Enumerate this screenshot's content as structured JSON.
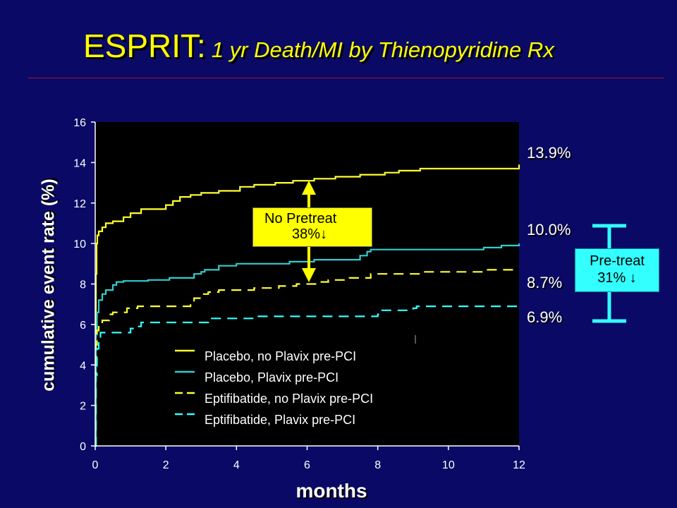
{
  "title": {
    "main": "ESPRIT:",
    "sub": "1 yr Death/MI by Thienopyridine Rx"
  },
  "colors": {
    "background": "#0a0a66",
    "title": "#ffff00",
    "placebo_no_plavix": "#ffff33",
    "placebo_plavix": "#33cccc",
    "eptifibatide_no_plavix": "#ffff33",
    "eptifibatide_plavix": "#33ffff",
    "no_pretreat_box": "#ffff00",
    "pretreat_box": "#33ffff"
  },
  "annotations": {
    "no_pretreat_line1": "No Pretreat",
    "no_pretreat_line2": "38%↓",
    "pretreat_line1": "Pre-treat",
    "pretreat_line2": "31% ↓"
  },
  "chart_data": {
    "type": "line",
    "xlabel": "months",
    "ylabel": "cumulative event rate (%)",
    "xlim": [
      0,
      12
    ],
    "ylim": [
      0,
      16
    ],
    "xticks": [
      "0",
      "2",
      "4",
      "6",
      "8",
      "10",
      "12"
    ],
    "yticks": [
      "0",
      "2",
      "4",
      "6",
      "8",
      "10",
      "12",
      "14",
      "16"
    ],
    "grid": false,
    "legend_position": "bottom-center",
    "end_labels": [
      "13.9%",
      "10.0%",
      "8.7%",
      "6.9%"
    ],
    "series": [
      {
        "name": "Placebo, no Plavix pre-PCI",
        "style": "solid",
        "color": "#ffff33",
        "points": [
          [
            0,
            0
          ],
          [
            0.02,
            8.5
          ],
          [
            0.04,
            10.0
          ],
          [
            0.06,
            10.4
          ],
          [
            0.1,
            10.6
          ],
          [
            0.2,
            10.8
          ],
          [
            0.3,
            11.0
          ],
          [
            0.5,
            11.1
          ],
          [
            0.8,
            11.3
          ],
          [
            1.0,
            11.5
          ],
          [
            1.3,
            11.7
          ],
          [
            2.0,
            11.9
          ],
          [
            2.2,
            12.1
          ],
          [
            2.4,
            12.3
          ],
          [
            2.7,
            12.4
          ],
          [
            3.0,
            12.5
          ],
          [
            3.5,
            12.6
          ],
          [
            4.1,
            12.8
          ],
          [
            4.5,
            12.9
          ],
          [
            5.1,
            13.0
          ],
          [
            5.6,
            13.1
          ],
          [
            6.2,
            13.2
          ],
          [
            6.8,
            13.3
          ],
          [
            7.5,
            13.4
          ],
          [
            8.2,
            13.5
          ],
          [
            8.6,
            13.6
          ],
          [
            9.2,
            13.7
          ],
          [
            10.5,
            13.7
          ],
          [
            11.9,
            13.7
          ],
          [
            12.0,
            13.9
          ]
        ]
      },
      {
        "name": "Placebo, Plavix pre-PCI",
        "style": "solid",
        "color": "#33cccc",
        "points": [
          [
            0,
            0
          ],
          [
            0.02,
            5.5
          ],
          [
            0.05,
            6.6
          ],
          [
            0.1,
            7.2
          ],
          [
            0.2,
            7.5
          ],
          [
            0.3,
            7.7
          ],
          [
            0.5,
            7.95
          ],
          [
            0.6,
            8.1
          ],
          [
            0.8,
            8.15
          ],
          [
            1.5,
            8.2
          ],
          [
            2.1,
            8.3
          ],
          [
            2.8,
            8.5
          ],
          [
            3.0,
            8.6
          ],
          [
            3.1,
            8.7
          ],
          [
            3.5,
            8.9
          ],
          [
            4.0,
            9.0
          ],
          [
            5.5,
            9.1
          ],
          [
            6.2,
            9.2
          ],
          [
            7.5,
            9.4
          ],
          [
            7.7,
            9.6
          ],
          [
            7.8,
            9.7
          ],
          [
            8.5,
            9.7
          ],
          [
            11.0,
            9.8
          ],
          [
            11.5,
            9.9
          ],
          [
            12.0,
            10.0
          ]
        ]
      },
      {
        "name": "Eptifibatide, no Plavix pre-PCI",
        "style": "dashed",
        "color": "#ffff33",
        "points": [
          [
            0,
            0
          ],
          [
            0.02,
            5.0
          ],
          [
            0.05,
            5.7
          ],
          [
            0.1,
            6.0
          ],
          [
            0.2,
            6.2
          ],
          [
            0.4,
            6.5
          ],
          [
            0.5,
            6.6
          ],
          [
            0.9,
            6.8
          ],
          [
            1.2,
            6.9
          ],
          [
            2.5,
            6.9
          ],
          [
            2.7,
            7.1
          ],
          [
            2.8,
            7.3
          ],
          [
            3.0,
            7.5
          ],
          [
            3.2,
            7.6
          ],
          [
            3.5,
            7.7
          ],
          [
            4.5,
            7.8
          ],
          [
            5.2,
            7.9
          ],
          [
            5.7,
            8.0
          ],
          [
            6.3,
            8.1
          ],
          [
            6.6,
            8.2
          ],
          [
            7.2,
            8.3
          ],
          [
            7.8,
            8.5
          ],
          [
            8.5,
            8.5
          ],
          [
            9.2,
            8.6
          ],
          [
            10.0,
            8.6
          ],
          [
            11.0,
            8.7
          ],
          [
            12.0,
            8.7
          ]
        ]
      },
      {
        "name": "Eptifibatide, Plavix pre-PCI",
        "style": "dashed",
        "color": "#33ffff",
        "points": [
          [
            0,
            0
          ],
          [
            0.02,
            3.5
          ],
          [
            0.05,
            4.8
          ],
          [
            0.1,
            5.2
          ],
          [
            0.15,
            5.6
          ],
          [
            0.4,
            5.6
          ],
          [
            1.0,
            5.8
          ],
          [
            1.2,
            5.9
          ],
          [
            1.3,
            6.1
          ],
          [
            3.2,
            6.2
          ],
          [
            3.3,
            6.3
          ],
          [
            3.5,
            6.3
          ],
          [
            4.5,
            6.4
          ],
          [
            7.0,
            6.4
          ],
          [
            8.0,
            6.5
          ],
          [
            8.1,
            6.7
          ],
          [
            9.0,
            6.8
          ],
          [
            9.1,
            6.9
          ],
          [
            12.0,
            6.9
          ]
        ]
      }
    ]
  }
}
